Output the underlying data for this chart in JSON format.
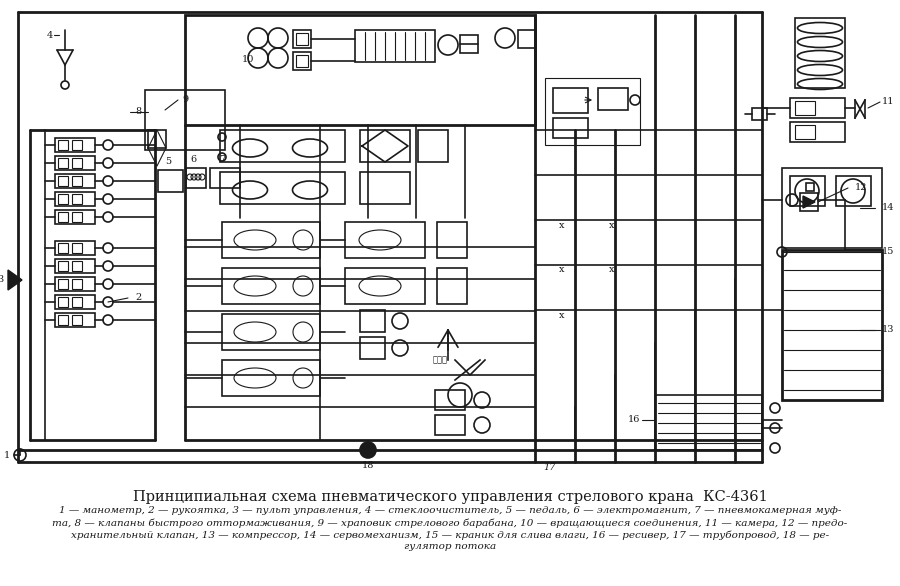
{
  "title": "Принципиальная схема пневматического управления стрелового крана  КС-4361",
  "caption_line1": "1 — манометр, 2 — рукоятка, 3 — пульт управления, 4 — стеклоочиститель, 5 — педаль, 6 — электромагнит, 7 — пневмокамерная муф-",
  "caption_line2": "та, 8 — клапаны быстрого оттормаживания, 9 — храповик стрелового барабана, 10 — вращающиеся соединения, 11 — камера, 12 — предо-",
  "caption_line3": "хранительный клапан, 13 — компрессор, 14 — сервомеханизм, 15 — краник для слива влаги, 16 — ресивер, 17 — трубопровод, 18 — ре-",
  "caption_line4": "гулятор потока",
  "bg_color": "#ffffff",
  "line_color": "#1a1a1a",
  "title_fontsize": 10.5,
  "caption_fontsize": 7.5
}
